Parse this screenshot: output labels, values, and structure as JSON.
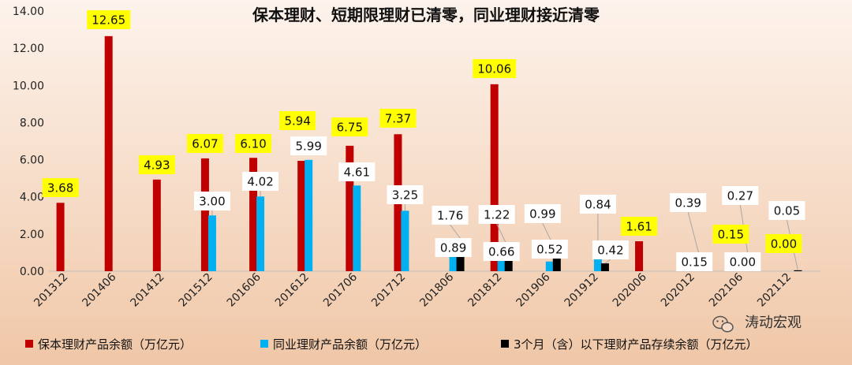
{
  "colors": {
    "series_red": "#C00000",
    "series_blue": "#00B0F0",
    "series_black": "#000000",
    "highlight": "#FFFF00",
    "label_box": "#FFFFFF",
    "bg_start": "#FDF3EC",
    "bg_end": "#F0C7A7"
  },
  "watermark": {
    "icon": "wechat-icon",
    "text": "涛动宏观"
  },
  "chart_data": {
    "type": "bar",
    "title": "保本理财、短期限理财已清零，同业理财接近清零",
    "xlabel": "",
    "ylabel": "",
    "ylim": [
      0,
      14
    ],
    "yticks": [
      "0.00",
      "2.00",
      "4.00",
      "6.00",
      "8.00",
      "10.00",
      "12.00",
      "14.00"
    ],
    "grid": false,
    "legend_position": "bottom",
    "categories": [
      "201312",
      "201406",
      "201412",
      "201512",
      "201606",
      "201612",
      "201706",
      "201712",
      "201806",
      "201812",
      "201906",
      "201912",
      "202006",
      "202012",
      "202106",
      "202112"
    ],
    "series": [
      {
        "name": "保本理财产品余额（万亿元）",
        "color": "#C00000",
        "values": [
          3.68,
          12.65,
          4.93,
          6.07,
          6.1,
          5.94,
          6.75,
          7.37,
          null,
          10.06,
          null,
          null,
          1.61,
          null,
          0.15,
          0.0
        ],
        "labels": [
          "3.68",
          "12.65",
          "4.93",
          "6.07",
          "6.10",
          "5.94",
          "6.75",
          "7.37",
          "",
          "10.06",
          "",
          "",
          "1.61",
          "",
          "0.15",
          "0.00"
        ]
      },
      {
        "name": "同业理财产品余额（万亿元）",
        "color": "#00B0F0",
        "values": [
          null,
          null,
          null,
          3.0,
          4.02,
          5.99,
          4.61,
          3.25,
          0.89,
          0.66,
          0.52,
          0.84,
          null,
          0.15,
          0.0,
          null
        ],
        "labels": [
          "",
          "",
          "",
          "3.00",
          "4.02",
          "5.99",
          "4.61",
          "3.25",
          "0.89",
          "0.66",
          "0.52",
          "0.84",
          "",
          "0.15",
          "0.00",
          ""
        ]
      },
      {
        "name": "3个月（含）以下理财产品存续余额（万亿元）",
        "color": "#000000",
        "values": [
          null,
          null,
          null,
          null,
          null,
          null,
          null,
          null,
          1.76,
          1.22,
          0.99,
          0.42,
          null,
          0.39,
          0.27,
          0.05
        ],
        "labels": [
          "",
          "",
          "",
          "",
          "",
          "",
          "",
          "",
          "1.76",
          "1.22",
          "0.99",
          "0.42",
          "",
          "0.39",
          "0.27",
          "0.05"
        ]
      }
    ]
  }
}
